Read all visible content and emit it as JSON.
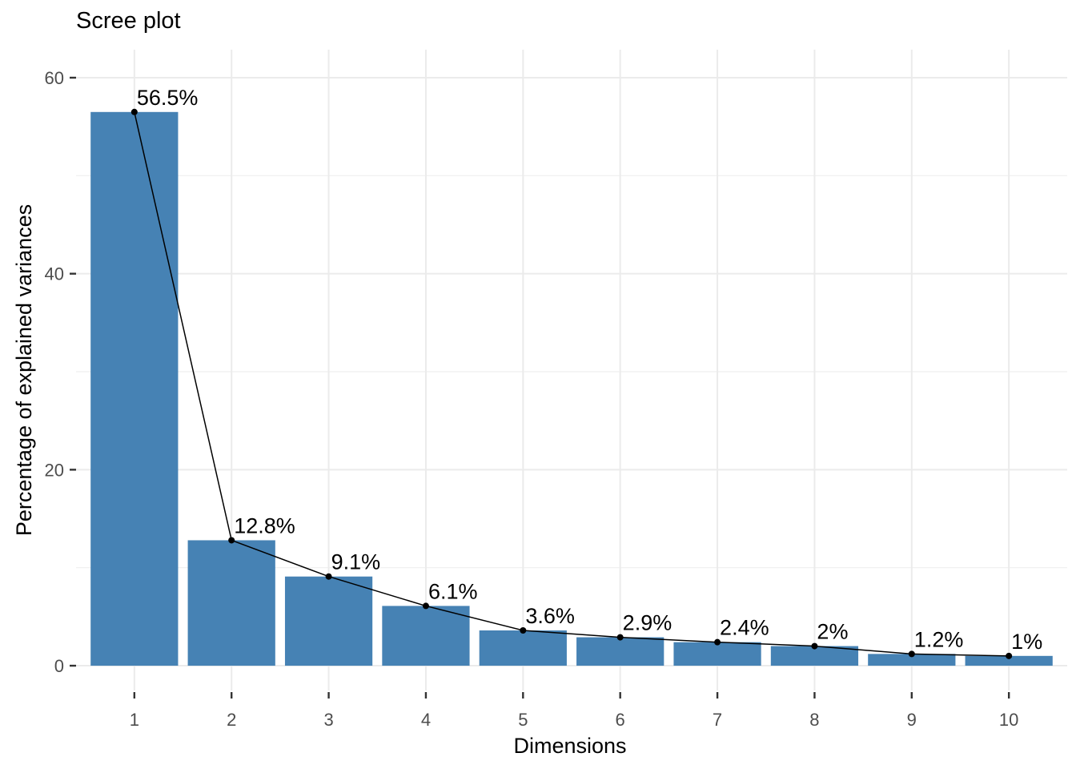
{
  "chart_data": {
    "type": "bar",
    "subtype": "bar-with-line-overlay",
    "title": "Scree plot",
    "xlabel": "Dimensions",
    "ylabel": "Percentage of explained variances",
    "categories": [
      "1",
      "2",
      "3",
      "4",
      "5",
      "6",
      "7",
      "8",
      "9",
      "10"
    ],
    "series": [
      {
        "name": "Percentage of explained variances",
        "values": [
          56.5,
          12.8,
          9.1,
          6.1,
          3.6,
          2.9,
          2.4,
          2,
          1.2,
          1
        ]
      }
    ],
    "point_labels": [
      "56.5%",
      "12.8%",
      "9.1%",
      "6.1%",
      "3.6%",
      "2.9%",
      "2.4%",
      "2%",
      "1.2%",
      "1%"
    ],
    "y_ticks": [
      0,
      20,
      40,
      60
    ],
    "y_tick_labels": [
      "0",
      "20",
      "40",
      "60"
    ],
    "y_minor_ticks": [
      10,
      30,
      50
    ],
    "ylim": [
      -2.53,
      62.86
    ],
    "grid": true,
    "legend": "none",
    "colors": {
      "bar_fill": "#4682B4",
      "line": "#000000",
      "point": "#000000",
      "grid_major": "#EBEBEB",
      "grid_minor": "#EFEFEF",
      "tick_text": "#4D4D4D",
      "tick_mark": "#333333",
      "text": "#000000",
      "background": "#FFFFFF"
    }
  }
}
